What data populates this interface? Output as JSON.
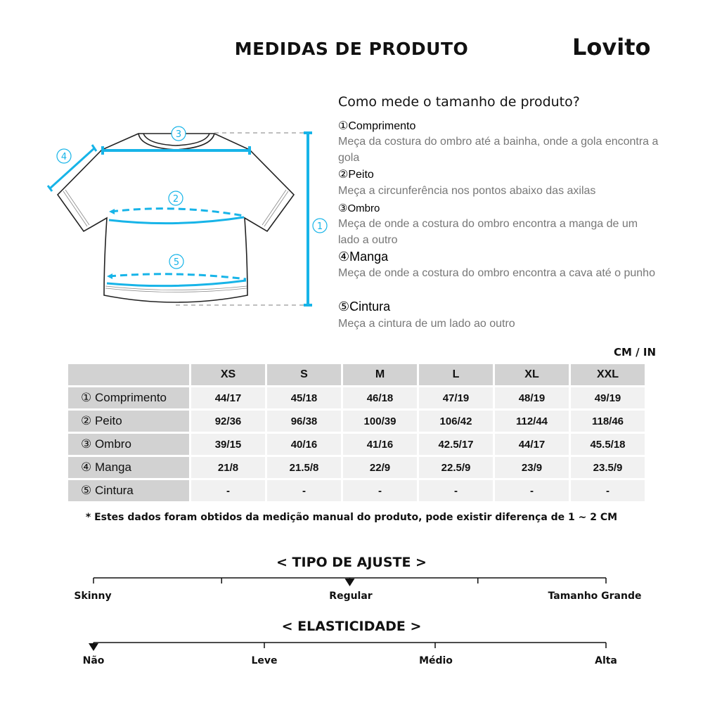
{
  "header": {
    "title": "MEDIDAS DE PRODUTO",
    "logo": "Lovito"
  },
  "guide": {
    "question": "Como mede o tamanho de produto?",
    "items": [
      {
        "label": "①Comprimento",
        "desc": "Meça da costura do ombro até a bainha, onde a gola encontra a gola"
      },
      {
        "label": "②Peito",
        "desc": "Meça a circunferência nos pontos abaixo das axilas"
      },
      {
        "label": "③Ombro",
        "desc": "Meça de onde a costura do ombro encontra a manga de um lado a outro"
      },
      {
        "label": "④Manga",
        "desc": "Meça de onde a costura do ombro encontra a cava até o punho"
      },
      {
        "label": "⑤Cintura",
        "desc": "Meça a cintura de um lado ao outro"
      }
    ]
  },
  "diagram": {
    "markers": [
      "①",
      "②",
      "③",
      "④",
      "⑤"
    ],
    "accent": "#17b4e8"
  },
  "table": {
    "units": "CM / IN",
    "sizes": [
      "XS",
      "S",
      "M",
      "L",
      "XL",
      "XXL"
    ],
    "rows": [
      {
        "label": "① Comprimento",
        "values": [
          "44/17",
          "45/18",
          "46/18",
          "47/19",
          "48/19",
          "49/19"
        ]
      },
      {
        "label": "② Peito",
        "values": [
          "92/36",
          "96/38",
          "100/39",
          "106/42",
          "112/44",
          "118/46"
        ]
      },
      {
        "label": "③ Ombro",
        "values": [
          "39/15",
          "40/16",
          "41/16",
          "42.5/17",
          "44/17",
          "45.5/18"
        ]
      },
      {
        "label": "④ Manga",
        "values": [
          "21/8",
          "21.5/8",
          "22/9",
          "22.5/9",
          "23/9",
          "23.5/9"
        ]
      },
      {
        "label": "⑤ Cintura",
        "values": [
          "-",
          "-",
          "-",
          "-",
          "-",
          "-"
        ]
      }
    ]
  },
  "note": "* Estes dados foram obtidos da medição manual do produto, pode existir diferença de 1 ~ 2 CM",
  "fit": {
    "title": "< TIPO DE AJUSTE >",
    "labels": [
      "Skinny",
      "Regular",
      "Tamanho Grande"
    ],
    "selected": "Regular",
    "selected_step": 2,
    "steps": 5
  },
  "elasticity": {
    "title": "< ELASTICIDADE >",
    "labels": [
      "Não",
      "Leve",
      "Médio",
      "Alta"
    ],
    "selected": "Não",
    "selected_step": 0,
    "steps": 4
  }
}
